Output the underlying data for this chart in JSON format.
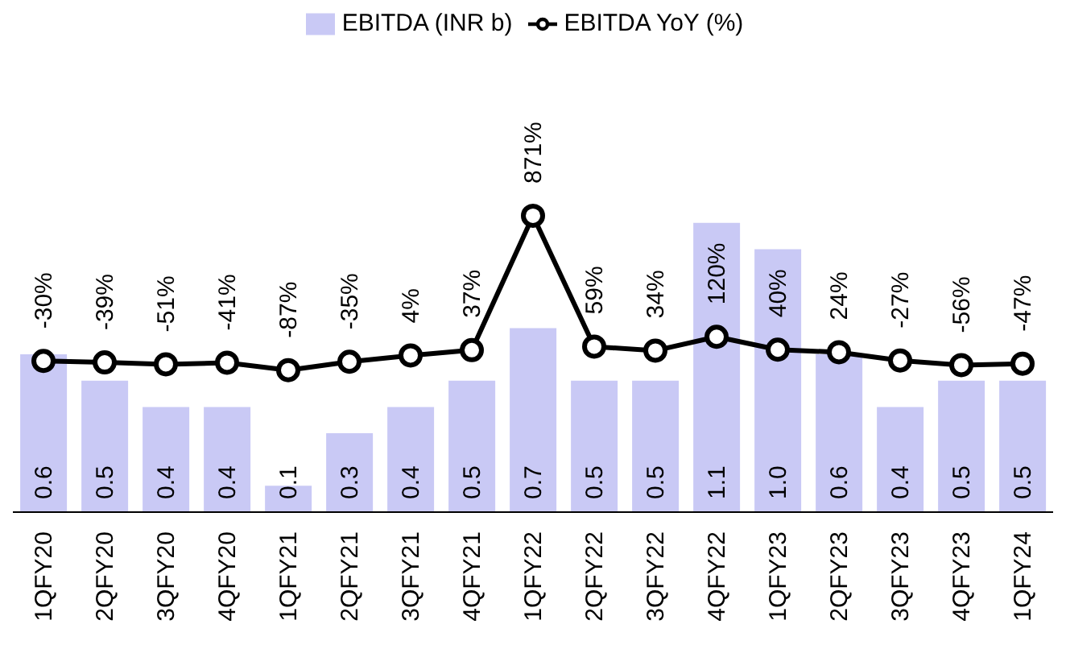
{
  "chart_data": {
    "type": "bar",
    "categories": [
      "1QFY20",
      "2QFY20",
      "3QFY20",
      "4QFY20",
      "1QFY21",
      "2QFY21",
      "3QFY21",
      "4QFY21",
      "1QFY22",
      "2QFY22",
      "3QFY22",
      "4QFY22",
      "1QFY23",
      "2QFY23",
      "3QFY23",
      "4QFY23",
      "1QFY24"
    ],
    "series": [
      {
        "name": "EBITDA (INR b)",
        "color": "#c9c9f5",
        "values": [
          0.6,
          0.5,
          0.4,
          0.4,
          0.1,
          0.3,
          0.4,
          0.5,
          0.7,
          0.5,
          0.5,
          1.1,
          1.0,
          0.6,
          0.4,
          0.5,
          0.5
        ],
        "value_labels": [
          "0.6",
          "0.5",
          "0.4",
          "0.4",
          "0.1",
          "0.3",
          "0.4",
          "0.5",
          "0.7",
          "0.5",
          "0.5",
          "1.1",
          "1.0",
          "0.6",
          "0.4",
          "0.5",
          "0.5"
        ]
      },
      {
        "name": "EBITDA YoY (%)",
        "type": "line",
        "axis": "y2",
        "color": "#000000",
        "marker": "circle",
        "values": [
          -30,
          -39,
          -51,
          -41,
          -87,
          -35,
          4,
          37,
          871,
          59,
          34,
          120,
          40,
          24,
          -27,
          -56,
          -47
        ],
        "value_labels": [
          "-30%",
          "-39%",
          "-51%",
          "-41%",
          "-87%",
          "-35%",
          "4%",
          "37%",
          "871%",
          "59%",
          "34%",
          "120%",
          "40%",
          "24%",
          "-27%",
          "-56%",
          "-47%"
        ]
      }
    ],
    "data_labels": true,
    "legend": "top",
    "tick_labels": "x"
  }
}
